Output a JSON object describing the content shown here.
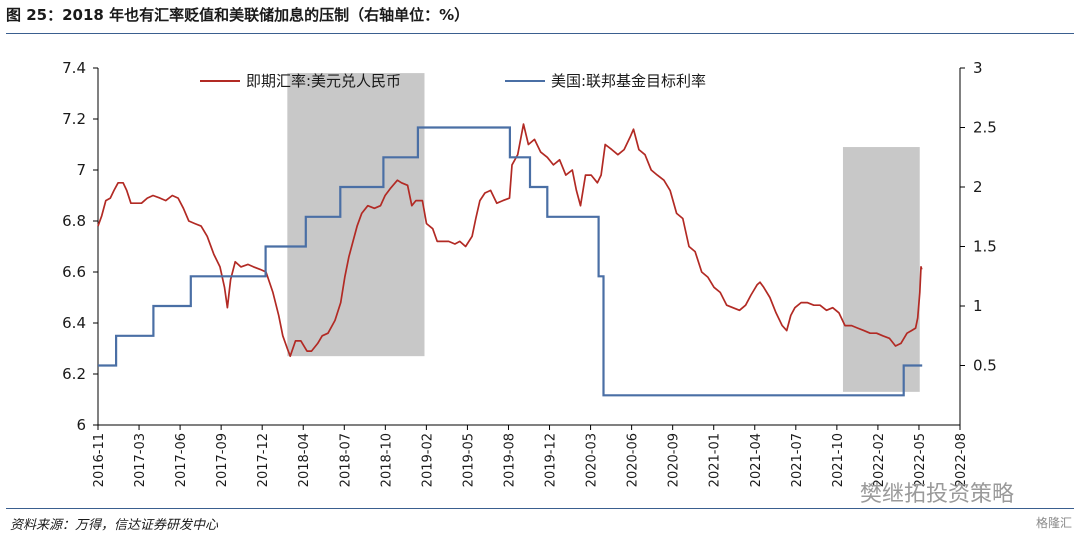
{
  "figure": {
    "title": "图 25：2018 年也有汇率贬值和美联储加息的压制（右轴单位：%）",
    "source": "资料来源：万得，信达证券研发中心",
    "watermark": "樊继拓投资策略",
    "badge": "格隆汇"
  },
  "chart_data": {
    "type": "line",
    "title": "2018 年也有汇率贬值和美联储加息的压制（右轴单位：%）",
    "y_left": {
      "min": 6.0,
      "max": 7.4,
      "ticks": [
        6,
        6.2,
        6.4,
        6.6,
        6.8,
        7,
        7.2,
        7.4
      ],
      "tick_labels": [
        "6",
        "6.2",
        "6.4",
        "6.6",
        "6.8",
        "7",
        "7.2",
        "7.4"
      ]
    },
    "y_right": {
      "min": 0,
      "max": 3,
      "ticks": [
        0.5,
        1,
        1.5,
        2,
        2.5,
        3
      ],
      "tick_labels": [
        "0.5",
        "1",
        "1.5",
        "2",
        "2.5",
        "3"
      ]
    },
    "x_axis": {
      "start": "2016-11",
      "end": "2022-08",
      "tick_labels": [
        "2016-11",
        "2017-03",
        "2017-06",
        "2017-09",
        "2017-12",
        "2018-04",
        "2018-07",
        "2018-10",
        "2019-02",
        "2019-05",
        "2019-08",
        "2019-12",
        "2020-03",
        "2020-06",
        "2020-09",
        "2021-01",
        "2021-04",
        "2021-07",
        "2021-10",
        "2022-02",
        "2022-05",
        "2022-08"
      ]
    },
    "legend_position": "top",
    "shaded_periods": [
      {
        "start": "2018-02-05",
        "end": "2019-01-05",
        "y_left_range": [
          6.27,
          7.38
        ]
      },
      {
        "start": "2021-10-20",
        "end": "2022-04-25",
        "y_left_range": [
          6.13,
          7.09
        ]
      }
    ],
    "series": [
      {
        "name": "即期汇率:美元兑人民币",
        "axis": "left",
        "color": "#b22a24",
        "points": [
          [
            "2016-11-01",
            6.78
          ],
          [
            "2016-11-10",
            6.82
          ],
          [
            "2016-11-20",
            6.88
          ],
          [
            "2016-12-01",
            6.89
          ],
          [
            "2016-12-10",
            6.92
          ],
          [
            "2016-12-20",
            6.95
          ],
          [
            "2017-01-01",
            6.95
          ],
          [
            "2017-01-10",
            6.92
          ],
          [
            "2017-01-20",
            6.87
          ],
          [
            "2017-02-01",
            6.87
          ],
          [
            "2017-02-15",
            6.87
          ],
          [
            "2017-03-01",
            6.89
          ],
          [
            "2017-03-15",
            6.9
          ],
          [
            "2017-04-01",
            6.89
          ],
          [
            "2017-04-15",
            6.88
          ],
          [
            "2017-05-01",
            6.9
          ],
          [
            "2017-05-15",
            6.89
          ],
          [
            "2017-05-28",
            6.85
          ],
          [
            "2017-06-10",
            6.8
          ],
          [
            "2017-06-25",
            6.79
          ],
          [
            "2017-07-10",
            6.78
          ],
          [
            "2017-07-25",
            6.74
          ],
          [
            "2017-08-10",
            6.67
          ],
          [
            "2017-08-25",
            6.62
          ],
          [
            "2017-09-05",
            6.54
          ],
          [
            "2017-09-12",
            6.46
          ],
          [
            "2017-09-20",
            6.57
          ],
          [
            "2017-10-01",
            6.64
          ],
          [
            "2017-10-15",
            6.62
          ],
          [
            "2017-11-01",
            6.63
          ],
          [
            "2017-11-15",
            6.62
          ],
          [
            "2017-12-01",
            6.61
          ],
          [
            "2017-12-15",
            6.6
          ],
          [
            "2018-01-01",
            6.52
          ],
          [
            "2018-01-15",
            6.43
          ],
          [
            "2018-01-25",
            6.35
          ],
          [
            "2018-02-05",
            6.3
          ],
          [
            "2018-02-12",
            6.27
          ],
          [
            "2018-02-25",
            6.33
          ],
          [
            "2018-03-10",
            6.33
          ],
          [
            "2018-03-25",
            6.29
          ],
          [
            "2018-04-05",
            6.29
          ],
          [
            "2018-04-20",
            6.32
          ],
          [
            "2018-05-01",
            6.35
          ],
          [
            "2018-05-15",
            6.36
          ],
          [
            "2018-06-01",
            6.41
          ],
          [
            "2018-06-15",
            6.48
          ],
          [
            "2018-06-25",
            6.58
          ],
          [
            "2018-07-05",
            6.66
          ],
          [
            "2018-07-15",
            6.72
          ],
          [
            "2018-07-25",
            6.78
          ],
          [
            "2018-08-05",
            6.83
          ],
          [
            "2018-08-20",
            6.86
          ],
          [
            "2018-09-05",
            6.85
          ],
          [
            "2018-09-20",
            6.86
          ],
          [
            "2018-10-01",
            6.9
          ],
          [
            "2018-10-15",
            6.93
          ],
          [
            "2018-10-31",
            6.96
          ],
          [
            "2018-11-10",
            6.95
          ],
          [
            "2018-11-25",
            6.94
          ],
          [
            "2018-12-05",
            6.86
          ],
          [
            "2018-12-15",
            6.88
          ],
          [
            "2018-12-31",
            6.88
          ],
          [
            "2019-01-10",
            6.79
          ],
          [
            "2019-01-25",
            6.77
          ],
          [
            "2019-02-05",
            6.72
          ],
          [
            "2019-02-20",
            6.72
          ],
          [
            "2019-03-05",
            6.72
          ],
          [
            "2019-03-20",
            6.71
          ],
          [
            "2019-04-01",
            6.72
          ],
          [
            "2019-04-15",
            6.7
          ],
          [
            "2019-05-01",
            6.74
          ],
          [
            "2019-05-10",
            6.81
          ],
          [
            "2019-05-20",
            6.88
          ],
          [
            "2019-06-01",
            6.91
          ],
          [
            "2019-06-15",
            6.92
          ],
          [
            "2019-06-30",
            6.87
          ],
          [
            "2019-07-15",
            6.88
          ],
          [
            "2019-07-31",
            6.89
          ],
          [
            "2019-08-06",
            7.02
          ],
          [
            "2019-08-20",
            7.06
          ],
          [
            "2019-09-03",
            7.18
          ],
          [
            "2019-09-15",
            7.1
          ],
          [
            "2019-09-30",
            7.12
          ],
          [
            "2019-10-15",
            7.07
          ],
          [
            "2019-10-31",
            7.05
          ],
          [
            "2019-11-15",
            7.02
          ],
          [
            "2019-11-30",
            7.04
          ],
          [
            "2019-12-15",
            6.98
          ],
          [
            "2019-12-31",
            7.0
          ],
          [
            "2020-01-10",
            6.92
          ],
          [
            "2020-01-20",
            6.86
          ],
          [
            "2020-02-01",
            6.98
          ],
          [
            "2020-02-15",
            6.98
          ],
          [
            "2020-03-01",
            6.95
          ],
          [
            "2020-03-10",
            6.98
          ],
          [
            "2020-03-20",
            7.1
          ],
          [
            "2020-04-05",
            7.08
          ],
          [
            "2020-04-20",
            7.06
          ],
          [
            "2020-05-05",
            7.08
          ],
          [
            "2020-05-20",
            7.13
          ],
          [
            "2020-05-28",
            7.16
          ],
          [
            "2020-06-10",
            7.08
          ],
          [
            "2020-06-25",
            7.06
          ],
          [
            "2020-07-10",
            7.0
          ],
          [
            "2020-07-25",
            6.98
          ],
          [
            "2020-08-10",
            6.96
          ],
          [
            "2020-08-25",
            6.92
          ],
          [
            "2020-09-10",
            6.83
          ],
          [
            "2020-09-25",
            6.81
          ],
          [
            "2020-10-10",
            6.7
          ],
          [
            "2020-10-25",
            6.68
          ],
          [
            "2020-11-10",
            6.6
          ],
          [
            "2020-11-25",
            6.58
          ],
          [
            "2020-12-10",
            6.54
          ],
          [
            "2020-12-25",
            6.52
          ],
          [
            "2021-01-10",
            6.47
          ],
          [
            "2021-01-25",
            6.46
          ],
          [
            "2021-02-10",
            6.45
          ],
          [
            "2021-02-25",
            6.47
          ],
          [
            "2021-03-10",
            6.51
          ],
          [
            "2021-03-25",
            6.55
          ],
          [
            "2021-04-01",
            6.56
          ],
          [
            "2021-04-10",
            6.54
          ],
          [
            "2021-04-25",
            6.5
          ],
          [
            "2021-05-10",
            6.44
          ],
          [
            "2021-05-25",
            6.39
          ],
          [
            "2021-06-05",
            6.37
          ],
          [
            "2021-06-15",
            6.43
          ],
          [
            "2021-06-25",
            6.46
          ],
          [
            "2021-07-10",
            6.48
          ],
          [
            "2021-07-25",
            6.48
          ],
          [
            "2021-08-10",
            6.47
          ],
          [
            "2021-08-25",
            6.47
          ],
          [
            "2021-09-10",
            6.45
          ],
          [
            "2021-09-25",
            6.46
          ],
          [
            "2021-10-10",
            6.44
          ],
          [
            "2021-10-25",
            6.39
          ],
          [
            "2021-11-10",
            6.39
          ],
          [
            "2021-11-25",
            6.38
          ],
          [
            "2021-12-10",
            6.37
          ],
          [
            "2021-12-25",
            6.36
          ],
          [
            "2022-01-10",
            6.36
          ],
          [
            "2022-01-25",
            6.35
          ],
          [
            "2022-02-10",
            6.34
          ],
          [
            "2022-02-25",
            6.31
          ],
          [
            "2022-03-10",
            6.32
          ],
          [
            "2022-03-25",
            6.36
          ],
          [
            "2022-04-05",
            6.37
          ],
          [
            "2022-04-15",
            6.38
          ],
          [
            "2022-04-20",
            6.42
          ],
          [
            "2022-04-25",
            6.52
          ],
          [
            "2022-04-28",
            6.62
          ],
          [
            "2022-04-30",
            6.61
          ]
        ]
      },
      {
        "name": "美国:联邦基金目标利率",
        "axis": "right",
        "color": "#4a6fa5",
        "step_points": [
          [
            "2016-11-01",
            0.5
          ],
          [
            "2016-12-15",
            0.75
          ],
          [
            "2017-03-16",
            1.0
          ],
          [
            "2017-06-15",
            1.25
          ],
          [
            "2017-12-14",
            1.5
          ],
          [
            "2018-03-22",
            1.75
          ],
          [
            "2018-06-14",
            2.0
          ],
          [
            "2018-09-27",
            2.25
          ],
          [
            "2018-12-20",
            2.5
          ],
          [
            "2019-08-01",
            2.25
          ],
          [
            "2019-09-19",
            2.0
          ],
          [
            "2019-10-31",
            1.75
          ],
          [
            "2020-03-04",
            1.25
          ],
          [
            "2020-03-16",
            0.25
          ],
          [
            "2022-03-17",
            0.5
          ],
          [
            "2022-05-01",
            0.5
          ]
        ]
      }
    ]
  }
}
